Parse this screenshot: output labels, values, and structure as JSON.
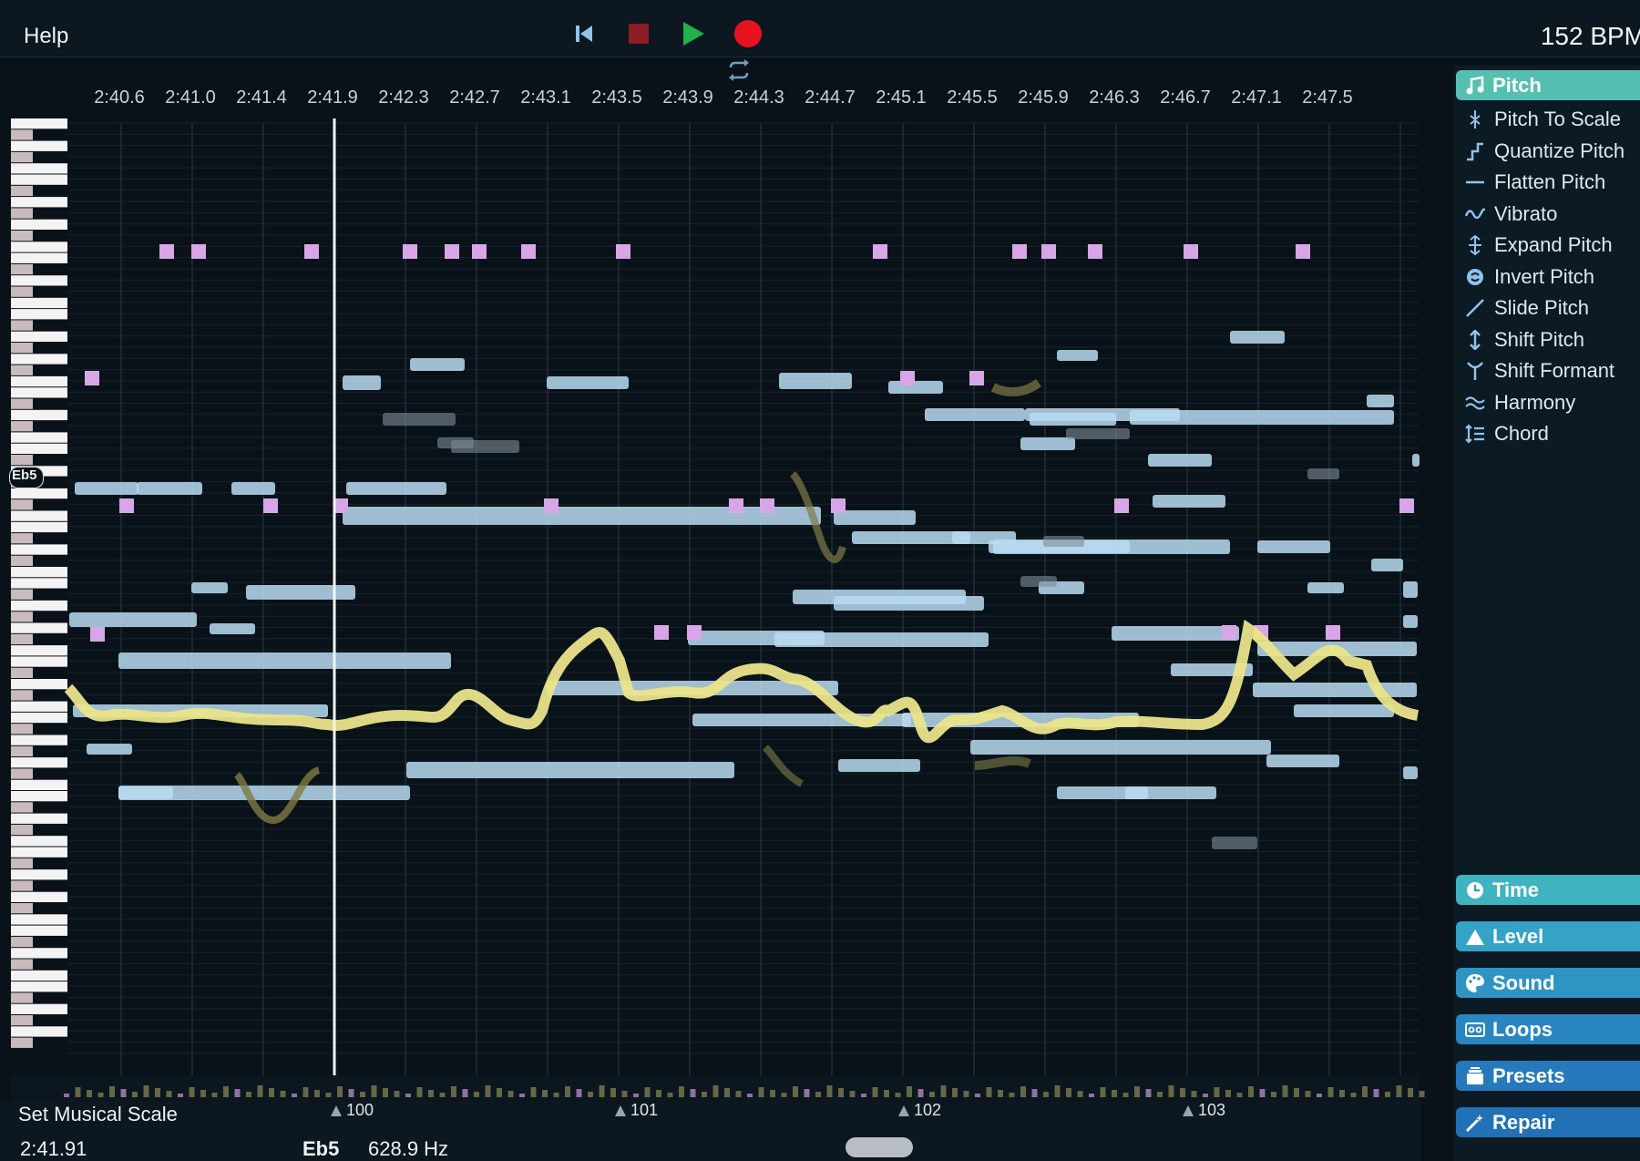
{
  "toolbar": {
    "help_label": "Help",
    "bpm": "152 BPM",
    "buttons": [
      "skip-to-start",
      "stop",
      "play",
      "record"
    ]
  },
  "timeline": {
    "ticks": [
      "2:40.6",
      "2:41.0",
      "2:41.4",
      "2:41.9",
      "2:42.3",
      "2:42.7",
      "2:43.1",
      "2:43.5",
      "2:43.9",
      "2:44.3",
      "2:44.7",
      "2:45.1",
      "2:45.5",
      "2:45.9",
      "2:46.3",
      "2:46.7",
      "2:47.1",
      "2:47.5"
    ]
  },
  "editor": {
    "hovered_note": "Eb5"
  },
  "bars": [
    {
      "label": "100"
    },
    {
      "label": "101"
    },
    {
      "label": "102"
    },
    {
      "label": "103"
    }
  ],
  "status": {
    "scale_button": "Set Musical Scale",
    "time": "2:41.91",
    "note": "Eb5",
    "frequency": "628.9 Hz"
  },
  "panel": {
    "pitch": {
      "title": "Pitch",
      "icon": "music-note-icon",
      "items": [
        {
          "label": "Pitch To Scale",
          "icon": "pitch-to-scale-icon"
        },
        {
          "label": "Quantize Pitch",
          "icon": "quantize-pitch-icon"
        },
        {
          "label": "Flatten Pitch",
          "icon": "flatten-pitch-icon"
        },
        {
          "label": "Vibrato",
          "icon": "vibrato-icon"
        },
        {
          "label": "Expand Pitch",
          "icon": "expand-pitch-icon"
        },
        {
          "label": "Invert Pitch",
          "icon": "invert-pitch-icon"
        },
        {
          "label": "Slide Pitch",
          "icon": "slide-pitch-icon"
        },
        {
          "label": "Shift Pitch",
          "icon": "shift-pitch-icon"
        },
        {
          "label": "Shift Formant",
          "icon": "shift-formant-icon"
        },
        {
          "label": "Harmony",
          "icon": "harmony-icon"
        },
        {
          "label": "Chord",
          "icon": "chord-icon"
        }
      ]
    },
    "categories": [
      {
        "title": "Time",
        "icon": "clock-icon"
      },
      {
        "title": "Level",
        "icon": "level-icon"
      },
      {
        "title": "Sound",
        "icon": "palette-icon"
      },
      {
        "title": "Loops",
        "icon": "cassette-icon"
      },
      {
        "title": "Presets",
        "icon": "presets-icon"
      },
      {
        "title": "Repair",
        "icon": "magic-wand-icon"
      }
    ]
  },
  "colors": {
    "accent_pitch": "#5ec4b6",
    "accent_time": "#3fb3c0",
    "accent_blue": "#2f8fbf",
    "note_blue": "#b9dcf2",
    "pitch_curve": "#eae48a",
    "marker_pink": "#d8a6e6"
  }
}
